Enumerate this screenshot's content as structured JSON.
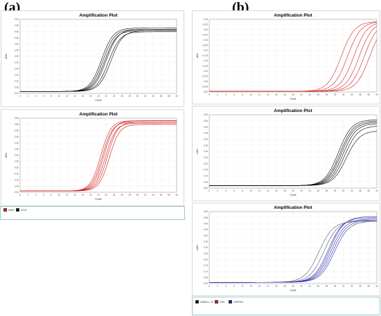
{
  "panels": {
    "a": "(a)",
    "b": "(b)"
  },
  "chart_data": [
    {
      "id": "a-top",
      "type": "line",
      "title": "Amplification Plot",
      "xlabel": "Cycle",
      "ylabel": "ΔRn",
      "xlim": [
        0,
        40
      ],
      "ylim": [
        0.0,
        0.6
      ],
      "xticks": [
        0,
        2,
        4,
        6,
        8,
        10,
        12,
        14,
        16,
        18,
        20,
        22,
        24,
        26,
        28,
        30,
        32,
        34,
        36,
        38,
        40
      ],
      "yticks": [
        "0.00",
        "0.05",
        "0.10",
        "0.15",
        "0.20",
        "0.25",
        "0.30",
        "0.35",
        "0.40",
        "0.45",
        "0.50",
        "0.55",
        "0.60"
      ],
      "series": [
        {
          "color": "#000000",
          "baseline": 0.015,
          "plateau": 0.53,
          "midpoint": 20.8,
          "slope": 1.5
        },
        {
          "color": "#000000",
          "baseline": 0.015,
          "plateau": 0.52,
          "midpoint": 21.2,
          "slope": 1.5
        },
        {
          "color": "#000000",
          "baseline": 0.015,
          "plateau": 0.51,
          "midpoint": 21.6,
          "slope": 1.5
        },
        {
          "color": "#000000",
          "baseline": 0.015,
          "plateau": 0.52,
          "midpoint": 22.0,
          "slope": 1.5
        },
        {
          "color": "#000000",
          "baseline": 0.015,
          "plateau": 0.5,
          "midpoint": 22.6,
          "slope": 1.5
        },
        {
          "color": "#000000",
          "baseline": 0.015,
          "plateau": 0.51,
          "midpoint": 23.2,
          "slope": 1.5
        }
      ]
    },
    {
      "id": "a-bottom",
      "type": "line",
      "title": "Amplification Plot",
      "xlabel": "Cycle",
      "ylabel": "ΔRn",
      "xlim": [
        0,
        40
      ],
      "ylim": [
        0.0,
        0.6
      ],
      "xticks": [
        0,
        2,
        4,
        6,
        8,
        10,
        12,
        14,
        16,
        18,
        20,
        22,
        24,
        26,
        28,
        30,
        32,
        34,
        36,
        38,
        40
      ],
      "yticks": [
        "0.00",
        "0.05",
        "0.10",
        "0.15",
        "0.20",
        "0.25",
        "0.30",
        "0.35",
        "0.40",
        "0.45",
        "0.50",
        "0.55",
        "0.60"
      ],
      "series": [
        {
          "color": "#cc1111",
          "baseline": 0.01,
          "plateau": 0.58,
          "midpoint": 20.6,
          "slope": 1.3
        },
        {
          "color": "#cc1111",
          "baseline": 0.01,
          "plateau": 0.57,
          "midpoint": 21.0,
          "slope": 1.3
        },
        {
          "color": "#cc1111",
          "baseline": 0.01,
          "plateau": 0.58,
          "midpoint": 21.4,
          "slope": 1.3
        },
        {
          "color": "#cc1111",
          "baseline": 0.01,
          "plateau": 0.56,
          "midpoint": 21.8,
          "slope": 1.3
        },
        {
          "color": "#cc1111",
          "baseline": 0.01,
          "plateau": 0.57,
          "midpoint": 22.3,
          "slope": 1.3
        },
        {
          "color": "#cc1111",
          "baseline": 0.01,
          "plateau": 0.55,
          "midpoint": 22.8,
          "slope": 1.3
        }
      ]
    },
    {
      "id": "b-top",
      "type": "line",
      "title": "Amplification Plot",
      "xlabel": "Cycle",
      "ylabel": "ΔRn",
      "xlim": [
        0,
        40
      ],
      "ylim": [
        0.0,
        0.35
      ],
      "xticks": [
        0,
        2,
        4,
        6,
        8,
        10,
        12,
        14,
        16,
        18,
        20,
        22,
        24,
        26,
        28,
        30,
        32,
        34,
        36,
        38,
        40
      ],
      "yticks": [
        "0.00",
        "0.025",
        "0.05",
        "0.075",
        "0.10",
        "0.125",
        "0.15",
        "0.175",
        "0.20",
        "0.225",
        "0.25",
        "0.275",
        "0.30",
        "0.325",
        "0.35"
      ],
      "series": [
        {
          "color": "#cc2222",
          "baseline": 0.003,
          "plateau": 0.34,
          "midpoint": 31.5,
          "slope": 1.6
        },
        {
          "color": "#cc2222",
          "baseline": 0.003,
          "plateau": 0.34,
          "midpoint": 33.0,
          "slope": 1.6
        },
        {
          "color": "#cc2222",
          "baseline": 0.003,
          "plateau": 0.34,
          "midpoint": 34.5,
          "slope": 1.6
        },
        {
          "color": "#cc2222",
          "baseline": 0.003,
          "plateau": 0.34,
          "midpoint": 35.8,
          "slope": 1.6
        },
        {
          "color": "#cc2222",
          "baseline": 0.003,
          "plateau": 0.34,
          "midpoint": 37.0,
          "slope": 1.6
        },
        {
          "color": "#cc2222",
          "baseline": 0.003,
          "plateau": 0.34,
          "midpoint": 38.3,
          "slope": 1.6
        }
      ]
    },
    {
      "id": "b-middle",
      "type": "line",
      "title": "Amplification Plot",
      "xlabel": "Cycle",
      "ylabel": "ΔRn",
      "xlim": [
        0,
        40
      ],
      "ylim": [
        0.0,
        0.6
      ],
      "xticks": [
        0,
        2,
        4,
        6,
        8,
        10,
        12,
        14,
        16,
        18,
        20,
        22,
        24,
        26,
        28,
        30,
        32,
        34,
        36,
        38,
        40
      ],
      "yticks": [
        "0.00",
        "0.05",
        "0.10",
        "0.15",
        "0.20",
        "0.25",
        "0.30",
        "0.35",
        "0.40",
        "0.45",
        "0.50",
        "0.55",
        "0.60"
      ],
      "series": [
        {
          "color": "#000000",
          "baseline": 0.02,
          "plateau": 0.56,
          "midpoint": 30.8,
          "slope": 1.6
        },
        {
          "color": "#000000",
          "baseline": 0.02,
          "plateau": 0.55,
          "midpoint": 31.2,
          "slope": 1.6
        },
        {
          "color": "#000000",
          "baseline": 0.02,
          "plateau": 0.54,
          "midpoint": 31.5,
          "slope": 1.6
        },
        {
          "color": "#000000",
          "baseline": 0.02,
          "plateau": 0.53,
          "midpoint": 31.9,
          "slope": 1.6
        },
        {
          "color": "#000000",
          "baseline": 0.02,
          "plateau": 0.51,
          "midpoint": 32.3,
          "slope": 1.6
        },
        {
          "color": "#000000",
          "baseline": 0.02,
          "plateau": 0.47,
          "midpoint": 32.7,
          "slope": 1.6
        }
      ]
    },
    {
      "id": "b-bottom",
      "type": "line",
      "title": "Amplification Plot",
      "xlabel": "Cycle",
      "ylabel": "ΔRn",
      "xlim": [
        0,
        40
      ],
      "ylim": [
        0.0,
        0.6
      ],
      "xticks": [
        0,
        2,
        4,
        6,
        8,
        10,
        12,
        14,
        16,
        18,
        20,
        22,
        24,
        26,
        28,
        30,
        32,
        34,
        36,
        38,
        40
      ],
      "yticks": [
        "0.00",
        "0.05",
        "0.10",
        "0.15",
        "0.20",
        "0.25",
        "0.30",
        "0.35",
        "0.40",
        "0.45",
        "0.50",
        "0.55",
        "0.60"
      ],
      "series": [
        {
          "color": "#555566",
          "baseline": 0.01,
          "plateau": 0.52,
          "midpoint": 26.2,
          "slope": 1.7
        },
        {
          "color": "#555566",
          "baseline": 0.01,
          "plateau": 0.53,
          "midpoint": 27.4,
          "slope": 1.7
        },
        {
          "color": "#2a2aa8",
          "baseline": 0.01,
          "plateau": 0.55,
          "midpoint": 28.4,
          "slope": 1.7
        },
        {
          "color": "#2a2aa8",
          "baseline": 0.01,
          "plateau": 0.56,
          "midpoint": 28.8,
          "slope": 1.7
        },
        {
          "color": "#2a2aa8",
          "baseline": 0.01,
          "plateau": 0.54,
          "midpoint": 29.1,
          "slope": 1.7
        },
        {
          "color": "#2a2aa8",
          "baseline": 0.01,
          "plateau": 0.53,
          "midpoint": 29.5,
          "slope": 1.7
        },
        {
          "color": "#2a2aa8",
          "baseline": 0.01,
          "plateau": 0.52,
          "midpoint": 29.9,
          "slope": 1.7
        }
      ]
    }
  ],
  "legends": {
    "a": [
      {
        "label": "AKN",
        "color": "#ee1111"
      },
      {
        "label": "LIC3",
        "color": "#000000"
      }
    ],
    "b": [
      {
        "label": "ASBCL-79",
        "color": "#000000"
      },
      {
        "label": "P53",
        "color": "#ee1111"
      },
      {
        "label": "GAPDH",
        "color": "#1a1aaa"
      }
    ]
  }
}
